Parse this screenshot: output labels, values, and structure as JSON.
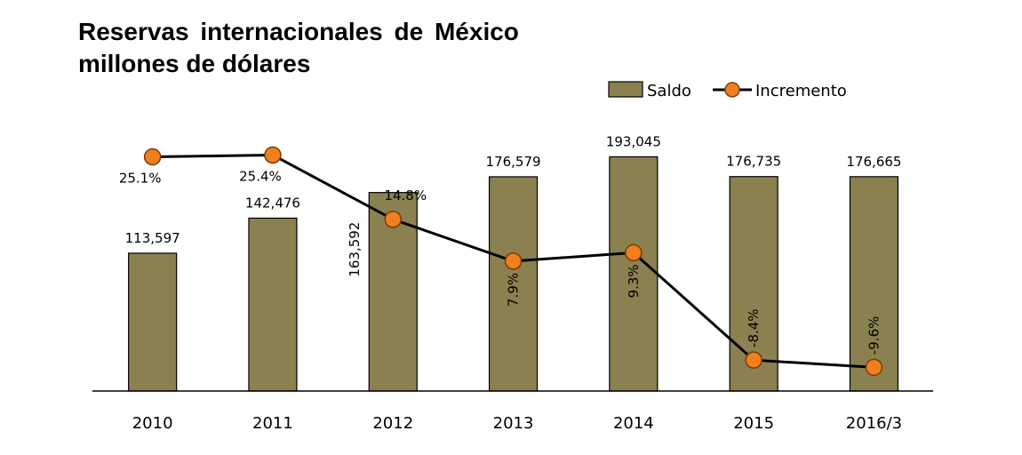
{
  "chart_data": {
    "type": "bar",
    "title": "Reservas internacionales de México",
    "subtitle": "millones de dólares",
    "categories": [
      "2010",
      "2011",
      "2012",
      "2013",
      "2014",
      "2015",
      "2016/3"
    ],
    "series": [
      {
        "name": "Saldo",
        "type": "bar",
        "values": [
          113597,
          142476,
          163592,
          176579,
          193045,
          176735,
          176665
        ],
        "labels": [
          "113,597",
          "142,476",
          "163,592",
          "176,579",
          "193,045",
          "176,735",
          "176,665"
        ]
      },
      {
        "name": "Incremento",
        "type": "line",
        "values": [
          25.1,
          25.4,
          14.8,
          7.9,
          9.3,
          -8.4,
          -9.6
        ],
        "labels": [
          "25.1%",
          "25.4%",
          "14.8%",
          "7.9%",
          "9.3%",
          "-8.4%",
          "-9.6%"
        ]
      }
    ],
    "ylim": [
      0,
      230000
    ],
    "y2lim": [
      -13.5,
      32.5
    ],
    "grid": false,
    "legend": "top-right",
    "colors": {
      "bar": "#8b8050",
      "bar_stroke": "#000000",
      "line": "#000000",
      "marker": "#f07f1e",
      "marker_stroke": "#7a3a08"
    }
  }
}
